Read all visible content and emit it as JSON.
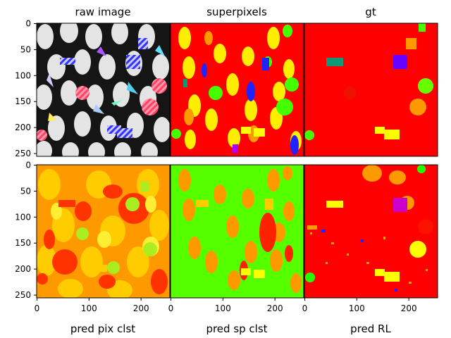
{
  "figure": {
    "panels": [
      {
        "id": "raw",
        "title": "raw image",
        "xlabel": ""
      },
      {
        "id": "sp",
        "title": "superpixels",
        "xlabel": ""
      },
      {
        "id": "gt",
        "title": "gt",
        "xlabel": ""
      },
      {
        "id": "pix",
        "title": "",
        "xlabel": "pred pix clst"
      },
      {
        "id": "spclst",
        "title": "",
        "xlabel": "pred sp clst"
      },
      {
        "id": "rl",
        "title": "",
        "xlabel": "pred RL"
      }
    ],
    "y_ticks": [
      "0",
      "50",
      "100",
      "150",
      "200",
      "250"
    ],
    "x_ticks": [
      "0",
      "100",
      "200"
    ],
    "palette": {
      "red": "#ff0000",
      "green": "#66ff00",
      "yellow": "#ffff00",
      "orange": "#ff9900",
      "lightorange": "#ffcc00",
      "blue": "#2222ff",
      "purple": "#aa00ff",
      "teal": "#119977",
      "black": "#111111",
      "white": "#f4f4f4",
      "gray": "#888888"
    }
  }
}
